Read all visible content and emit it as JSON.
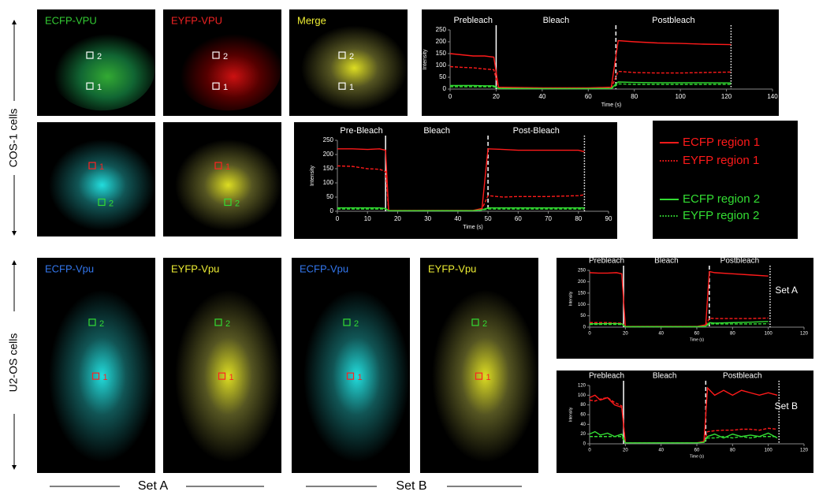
{
  "side_labels": [
    "COS-1 cells",
    "U2-OS cells"
  ],
  "bottom_labels": [
    "Set A",
    "Set B"
  ],
  "images": [
    {
      "label": "ECFP-VPU",
      "rois": [
        "1",
        "2"
      ]
    },
    {
      "label": "EYFP-VPU",
      "rois": [
        "1",
        "2"
      ]
    },
    {
      "label": "Merge",
      "rois": [
        "1",
        "2"
      ]
    },
    {
      "rois": [
        "1",
        "2"
      ]
    },
    {
      "rois": [
        "1",
        "2"
      ]
    },
    {
      "label": "ECFP-Vpu",
      "rois": [
        "1",
        "2"
      ]
    },
    {
      "label": "EYFP-Vpu",
      "rois": [
        "1",
        "2"
      ]
    },
    {
      "label": "ECFP-Vpu",
      "rois": [
        "1",
        "2"
      ]
    },
    {
      "label": "EYFP-Vpu",
      "rois": [
        "1",
        "2"
      ]
    }
  ],
  "chart_data": [
    {
      "type": "line",
      "xlabel": "Time (s)",
      "ylabel": "Intensity",
      "phases": [
        "Prebleach",
        "Bleach",
        "Postbleach"
      ],
      "vlines": [
        {
          "x": 20,
          "style": "solid"
        },
        {
          "x": 72,
          "style": "dashed"
        },
        {
          "x": 122,
          "style": "dotted"
        }
      ],
      "xlim": [
        0,
        140
      ],
      "xticks": [
        0,
        20,
        40,
        60,
        80,
        100,
        120,
        140
      ],
      "ylim": [
        0,
        250
      ],
      "yticks": [
        0,
        50,
        100,
        150,
        200,
        250
      ],
      "x": [
        0,
        5,
        10,
        15,
        19,
        21,
        40,
        60,
        70,
        73,
        80,
        90,
        100,
        110,
        122
      ],
      "series": [
        {
          "color": "#ff1a1a",
          "dash": false,
          "values": [
            150,
            145,
            140,
            140,
            135,
            8,
            5,
            5,
            8,
            205,
            200,
            195,
            193,
            190,
            188
          ]
        },
        {
          "color": "#ff1a1a",
          "dash": true,
          "values": [
            95,
            92,
            90,
            85,
            82,
            5,
            3,
            3,
            5,
            75,
            70,
            68,
            68,
            70,
            72
          ]
        },
        {
          "color": "#33dd33",
          "dash": false,
          "values": [
            15,
            15,
            15,
            14,
            14,
            3,
            2,
            2,
            3,
            30,
            28,
            27,
            27,
            27,
            26
          ]
        },
        {
          "color": "#33dd33",
          "dash": true,
          "values": [
            10,
            10,
            10,
            10,
            10,
            2,
            2,
            2,
            2,
            22,
            20,
            20,
            20,
            20,
            20
          ]
        }
      ]
    },
    {
      "type": "line",
      "xlabel": "Time (s)",
      "ylabel": "Intensity",
      "phases": [
        "Pre-Bleach",
        "Bleach",
        "Post-Bleach"
      ],
      "vlines": [
        {
          "x": 16,
          "style": "solid"
        },
        {
          "x": 50,
          "style": "dashed"
        },
        {
          "x": 82,
          "style": "dotted"
        }
      ],
      "xlim": [
        0,
        90
      ],
      "xticks": [
        0,
        10,
        20,
        30,
        40,
        50,
        60,
        70,
        80,
        90
      ],
      "ylim": [
        0,
        250
      ],
      "yticks": [
        0,
        50,
        100,
        150,
        200,
        250
      ],
      "x": [
        0,
        5,
        10,
        14,
        16,
        17,
        30,
        45,
        48,
        50,
        55,
        60,
        70,
        80,
        82
      ],
      "series": [
        {
          "name": "ECFP region 1",
          "color": "#ff1a1a",
          "dash": false,
          "values": [
            220,
            220,
            218,
            220,
            215,
            3,
            3,
            3,
            10,
            220,
            218,
            215,
            215,
            215,
            210
          ]
        },
        {
          "name": "EYFP region 1",
          "color": "#ff1a1a",
          "dash": true,
          "values": [
            160,
            158,
            150,
            148,
            140,
            2,
            2,
            2,
            8,
            55,
            50,
            52,
            52,
            55,
            58
          ]
        },
        {
          "name": "ECFP region 2",
          "color": "#33dd33",
          "dash": false,
          "values": [
            12,
            12,
            12,
            12,
            10,
            2,
            2,
            2,
            5,
            12,
            12,
            12,
            12,
            12,
            12
          ]
        },
        {
          "name": "EYFP region 2",
          "color": "#33dd33",
          "dash": true,
          "values": [
            8,
            8,
            8,
            8,
            8,
            2,
            2,
            2,
            4,
            8,
            8,
            8,
            8,
            8,
            8
          ]
        }
      ]
    },
    {
      "type": "line",
      "xlabel": "Time (s)",
      "ylabel": "Intensity",
      "annotation": "Set A",
      "phases": [
        "Prebleach",
        "Bleach",
        "Postbleach"
      ],
      "vlines": [
        {
          "x": 19,
          "style": "solid"
        },
        {
          "x": 67,
          "style": "dashed"
        },
        {
          "x": 101,
          "style": "dotted"
        }
      ],
      "xlim": [
        0,
        120
      ],
      "xticks": [
        0,
        20,
        40,
        60,
        80,
        100,
        120
      ],
      "ylim": [
        0,
        250
      ],
      "yticks": [
        0,
        50,
        100,
        150,
        200,
        250
      ],
      "x": [
        0,
        5,
        10,
        15,
        18,
        20,
        40,
        60,
        65,
        67,
        70,
        80,
        90,
        100
      ],
      "series": [
        {
          "color": "#ff1a1a",
          "dash": false,
          "values": [
            240,
            238,
            238,
            240,
            235,
            3,
            3,
            3,
            10,
            245,
            240,
            235,
            230,
            225
          ]
        },
        {
          "color": "#ff1a1a",
          "dash": true,
          "values": [
            20,
            20,
            20,
            18,
            18,
            2,
            2,
            2,
            5,
            40,
            38,
            38,
            38,
            40
          ]
        },
        {
          "color": "#33dd33",
          "dash": false,
          "values": [
            15,
            15,
            16,
            16,
            15,
            2,
            2,
            2,
            4,
            20,
            18,
            20,
            22,
            25
          ]
        },
        {
          "color": "#33dd33",
          "dash": true,
          "values": [
            12,
            12,
            12,
            12,
            12,
            2,
            2,
            2,
            3,
            15,
            14,
            14,
            14,
            15
          ]
        }
      ]
    },
    {
      "type": "line",
      "xlabel": "Time (s)",
      "ylabel": "Intensity",
      "annotation": "Set B",
      "phases": [
        "Prebleach",
        "Bleach",
        "Postbleach"
      ],
      "vlines": [
        {
          "x": 19,
          "style": "solid"
        },
        {
          "x": 65,
          "style": "dashed"
        },
        {
          "x": 106,
          "style": "dotted"
        }
      ],
      "xlim": [
        0,
        120
      ],
      "xticks": [
        0,
        20,
        40,
        60,
        80,
        100,
        120
      ],
      "ylim": [
        0,
        120
      ],
      "yticks": [
        0,
        20,
        40,
        60,
        80,
        100,
        120
      ],
      "x": [
        0,
        3,
        6,
        10,
        14,
        18,
        20,
        40,
        60,
        64,
        66,
        70,
        75,
        80,
        85,
        90,
        95,
        100,
        105
      ],
      "series": [
        {
          "color": "#ff1a1a",
          "dash": false,
          "values": [
            95,
            100,
            90,
            95,
            80,
            75,
            2,
            2,
            2,
            5,
            115,
            100,
            110,
            100,
            110,
            105,
            100,
            105,
            100
          ]
        },
        {
          "color": "#ff1a1a",
          "dash": true,
          "values": [
            90,
            88,
            92,
            95,
            85,
            78,
            2,
            2,
            2,
            4,
            25,
            27,
            28,
            28,
            30,
            30,
            28,
            32,
            30
          ]
        },
        {
          "color": "#33dd33",
          "dash": false,
          "values": [
            20,
            25,
            18,
            22,
            15,
            20,
            2,
            2,
            2,
            3,
            15,
            20,
            12,
            20,
            15,
            18,
            15,
            22,
            12
          ]
        },
        {
          "color": "#33dd33",
          "dash": true,
          "values": [
            15,
            15,
            15,
            15,
            15,
            15,
            2,
            2,
            2,
            3,
            12,
            12,
            15,
            12,
            15,
            12,
            15,
            15,
            15
          ]
        }
      ]
    }
  ]
}
